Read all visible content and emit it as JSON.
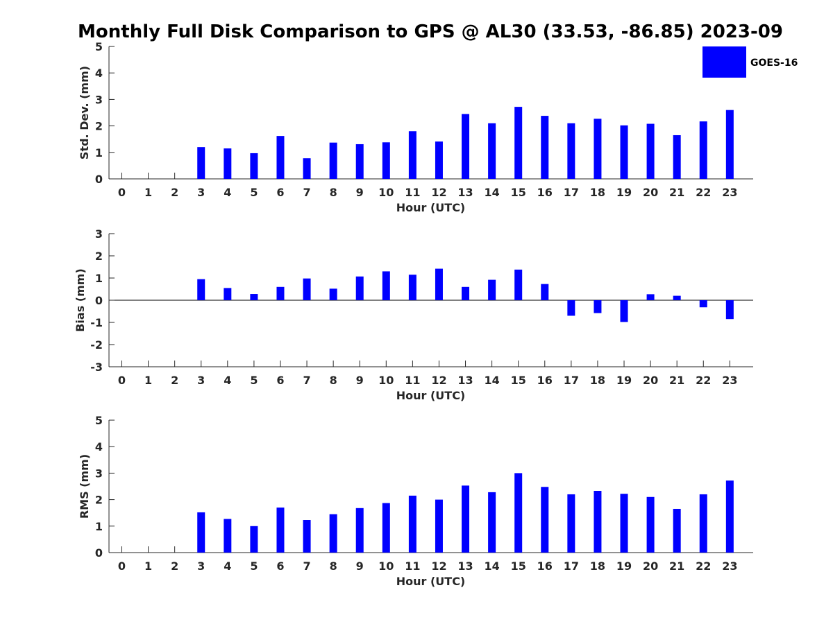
{
  "title": "Monthly Full Disk Comparison to GPS @ AL30 (33.53, -86.85) 2023-09",
  "colors": {
    "bar": "#0000FF",
    "axis": "#262626",
    "background": "#FFFFFF"
  },
  "legend": {
    "label": "GOES-16",
    "placement": "top-right"
  },
  "chart_data": [
    {
      "type": "bar",
      "xlabel": "Hour (UTC)",
      "ylabel": "Std. Dev. (mm)",
      "ylim": [
        0,
        5
      ],
      "yticks": [
        "0",
        "1",
        "2",
        "3",
        "4",
        "5"
      ],
      "categories": [
        "0",
        "1",
        "2",
        "3",
        "4",
        "5",
        "6",
        "7",
        "8",
        "9",
        "10",
        "11",
        "12",
        "13",
        "14",
        "15",
        "16",
        "17",
        "18",
        "19",
        "20",
        "21",
        "22",
        "23"
      ],
      "series": [
        {
          "name": "GOES-16",
          "values": [
            null,
            null,
            null,
            1.2,
            1.15,
            0.97,
            1.62,
            0.78,
            1.37,
            1.31,
            1.38,
            1.8,
            1.41,
            2.45,
            2.1,
            2.72,
            2.38,
            2.1,
            2.27,
            2.02,
            2.08,
            1.65,
            2.17,
            2.6
          ]
        }
      ],
      "grid": false
    },
    {
      "type": "bar",
      "xlabel": "Hour (UTC)",
      "ylabel": "Bias (mm)",
      "ylim": [
        -3,
        3
      ],
      "yticks": [
        "-3",
        "-2",
        "-1",
        "0",
        "1",
        "2",
        "3"
      ],
      "categories": [
        "0",
        "1",
        "2",
        "3",
        "4",
        "5",
        "6",
        "7",
        "8",
        "9",
        "10",
        "11",
        "12",
        "13",
        "14",
        "15",
        "16",
        "17",
        "18",
        "19",
        "20",
        "21",
        "22",
        "23"
      ],
      "series": [
        {
          "name": "GOES-16",
          "values": [
            null,
            null,
            null,
            0.95,
            0.55,
            0.28,
            0.6,
            0.98,
            0.52,
            1.07,
            1.3,
            1.15,
            1.42,
            0.6,
            0.92,
            1.38,
            0.73,
            -0.7,
            -0.58,
            -0.98,
            0.27,
            0.2,
            -0.32,
            -0.85
          ]
        }
      ],
      "grid": false
    },
    {
      "type": "bar",
      "xlabel": "Hour (UTC)",
      "ylabel": "RMS (mm)",
      "ylim": [
        0,
        5
      ],
      "yticks": [
        "0",
        "1",
        "2",
        "3",
        "4",
        "5"
      ],
      "categories": [
        "0",
        "1",
        "2",
        "3",
        "4",
        "5",
        "6",
        "7",
        "8",
        "9",
        "10",
        "11",
        "12",
        "13",
        "14",
        "15",
        "16",
        "17",
        "18",
        "19",
        "20",
        "21",
        "22",
        "23"
      ],
      "series": [
        {
          "name": "GOES-16",
          "values": [
            null,
            null,
            null,
            1.52,
            1.27,
            1.0,
            1.7,
            1.23,
            1.45,
            1.68,
            1.87,
            2.15,
            2.0,
            2.53,
            2.28,
            3.0,
            2.48,
            2.2,
            2.33,
            2.22,
            2.1,
            1.65,
            2.2,
            2.72
          ]
        }
      ],
      "grid": false
    }
  ]
}
